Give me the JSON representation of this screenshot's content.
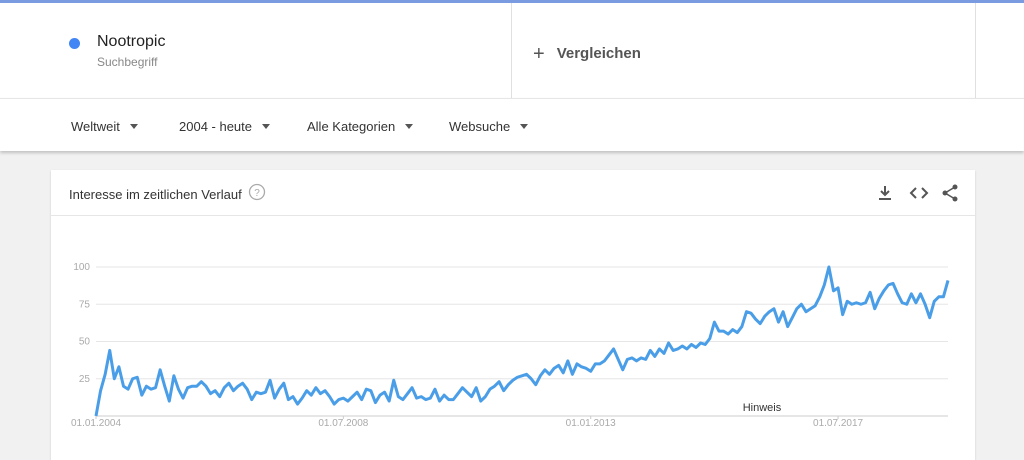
{
  "search": {
    "term": "Nootropic",
    "term_type": "Suchbegriff",
    "compare": "Vergleichen"
  },
  "filters": [
    "Weltweit",
    "2004 - heute",
    "Alle Kategorien",
    "Websuche"
  ],
  "card_title": "Interesse im zeitlichen Verlauf",
  "chart_data": {
    "type": "line",
    "annotation": "Hinweis",
    "x": [
      "01.01.2004",
      "01.02.2004",
      "01.03.2004",
      "01.04.2004",
      "01.05.2004",
      "01.06.2004",
      "01.07.2004",
      "01.08.2004",
      "01.09.2004",
      "01.10.2004",
      "01.11.2004",
      "01.12.2004",
      "01.01.2005",
      "01.02.2005",
      "01.03.2005",
      "01.04.2005",
      "01.05.2005",
      "01.06.2005",
      "01.07.2005",
      "01.08.2005",
      "01.09.2005",
      "01.10.2005",
      "01.11.2005",
      "01.12.2005",
      "01.01.2006",
      "01.02.2006",
      "01.03.2006",
      "01.04.2006",
      "01.05.2006",
      "01.06.2006",
      "01.07.2006",
      "01.08.2006",
      "01.09.2006",
      "01.10.2006",
      "01.11.2006",
      "01.12.2006",
      "01.01.2007",
      "01.02.2007",
      "01.03.2007",
      "01.04.2007",
      "01.05.2007",
      "01.06.2007",
      "01.07.2007",
      "01.08.2007",
      "01.09.2007",
      "01.10.2007",
      "01.11.2007",
      "01.12.2007",
      "01.01.2008",
      "01.02.2008",
      "01.03.2008",
      "01.04.2008",
      "01.05.2008",
      "01.06.2008",
      "01.07.2008",
      "01.08.2008",
      "01.09.2008",
      "01.10.2008",
      "01.11.2008",
      "01.12.2008",
      "01.01.2009",
      "01.02.2009",
      "01.03.2009",
      "01.04.2009",
      "01.05.2009",
      "01.06.2009",
      "01.07.2009",
      "01.08.2009",
      "01.09.2009",
      "01.10.2009",
      "01.11.2009",
      "01.12.2009",
      "01.01.2010",
      "01.02.2010",
      "01.03.2010",
      "01.04.2010",
      "01.05.2010",
      "01.06.2010",
      "01.07.2010",
      "01.08.2010",
      "01.09.2010",
      "01.10.2010",
      "01.11.2010",
      "01.12.2010",
      "01.01.2011",
      "01.02.2011",
      "01.03.2011",
      "01.04.2011",
      "01.05.2011",
      "01.06.2011",
      "01.07.2011",
      "01.08.2011",
      "01.09.2011",
      "01.10.2011",
      "01.11.2011",
      "01.12.2011",
      "01.01.2012",
      "01.02.2012",
      "01.03.2012",
      "01.04.2012",
      "01.05.2012",
      "01.06.2012",
      "01.07.2012",
      "01.08.2012",
      "01.09.2012",
      "01.10.2012",
      "01.11.2012",
      "01.12.2012",
      "01.01.2013",
      "01.02.2013",
      "01.03.2013",
      "01.04.2013",
      "01.05.2013",
      "01.06.2013",
      "01.07.2013",
      "01.08.2013",
      "01.09.2013",
      "01.10.2013",
      "01.11.2013",
      "01.12.2013",
      "01.01.2014",
      "01.02.2014",
      "01.03.2014",
      "01.04.2014",
      "01.05.2014",
      "01.06.2014",
      "01.07.2014",
      "01.08.2014",
      "01.09.2014",
      "01.10.2014",
      "01.11.2014",
      "01.12.2014",
      "01.01.2015",
      "01.02.2015",
      "01.03.2015",
      "01.04.2015",
      "01.05.2015",
      "01.06.2015",
      "01.07.2015",
      "01.08.2015",
      "01.09.2015",
      "01.10.2015",
      "01.11.2015",
      "01.12.2015",
      "01.01.2016",
      "01.02.2016",
      "01.03.2016",
      "01.04.2016",
      "01.05.2016",
      "01.06.2016",
      "01.07.2016",
      "01.08.2016",
      "01.09.2016",
      "01.10.2016",
      "01.11.2016",
      "01.12.2016",
      "01.01.2017",
      "01.02.2017",
      "01.03.2017",
      "01.04.2017",
      "01.05.2017",
      "01.06.2017",
      "01.07.2017",
      "01.08.2017",
      "01.09.2017",
      "01.10.2017",
      "01.11.2017",
      "01.12.2017",
      "01.01.2018",
      "01.02.2018",
      "01.03.2018",
      "01.04.2018",
      "01.05.2018",
      "01.06.2018",
      "01.07.2018",
      "01.08.2018",
      "01.09.2018",
      "01.10.2018",
      "01.11.2018",
      "01.12.2018",
      "01.01.2019",
      "01.02.2019",
      "01.03.2019",
      "01.04.2019",
      "01.05.2019",
      "01.06.2019",
      "01.07.2019"
    ],
    "series": [
      {
        "name": "Nootropic",
        "color": "#4a9ee8",
        "values": [
          0,
          17,
          28,
          44,
          25,
          33,
          20,
          18,
          25,
          26,
          14,
          20,
          18,
          19,
          31,
          20,
          10,
          27,
          18,
          12,
          19,
          20,
          20,
          23,
          20,
          15,
          17,
          13,
          19,
          22,
          17,
          20,
          22,
          18,
          11,
          16,
          15,
          16,
          24,
          12,
          18,
          22,
          11,
          13,
          8,
          12,
          17,
          14,
          19,
          15,
          17,
          13,
          8,
          11,
          12,
          10,
          13,
          16,
          11,
          18,
          17,
          9,
          14,
          16,
          10,
          24,
          13,
          11,
          15,
          19,
          12,
          13,
          11,
          12,
          18,
          10,
          14,
          11,
          11,
          15,
          19,
          16,
          13,
          19,
          10,
          13,
          18,
          20,
          23,
          17,
          21,
          24,
          26,
          27,
          28,
          25,
          21,
          27,
          31,
          28,
          32,
          34,
          29,
          37,
          28,
          35,
          33,
          32,
          30,
          35,
          35,
          37,
          41,
          45,
          38,
          31,
          38,
          39,
          37,
          39,
          38,
          44,
          40,
          45,
          42,
          49,
          44,
          45,
          47,
          45,
          48,
          46,
          49,
          48,
          52,
          63,
          57,
          57,
          55,
          58,
          56,
          60,
          70,
          69,
          65,
          62,
          67,
          70,
          72,
          63,
          70,
          60,
          66,
          72,
          75,
          70,
          72,
          74,
          80,
          88,
          100,
          84,
          86,
          68,
          77,
          75,
          76,
          75,
          76,
          83,
          72,
          79,
          84,
          88,
          89,
          82,
          76,
          75,
          82,
          76,
          82,
          75,
          66,
          77,
          80,
          80,
          91
        ]
      }
    ],
    "xlim": [
      "01.01.2004",
      "01.07.2019"
    ],
    "xticks": [
      "01.01.2004",
      "01.07.2008",
      "01.01.2013",
      "01.07.2017"
    ],
    "ylim": [
      0,
      100
    ],
    "yticks": [
      25,
      50,
      75,
      100
    ],
    "grid": true
  }
}
